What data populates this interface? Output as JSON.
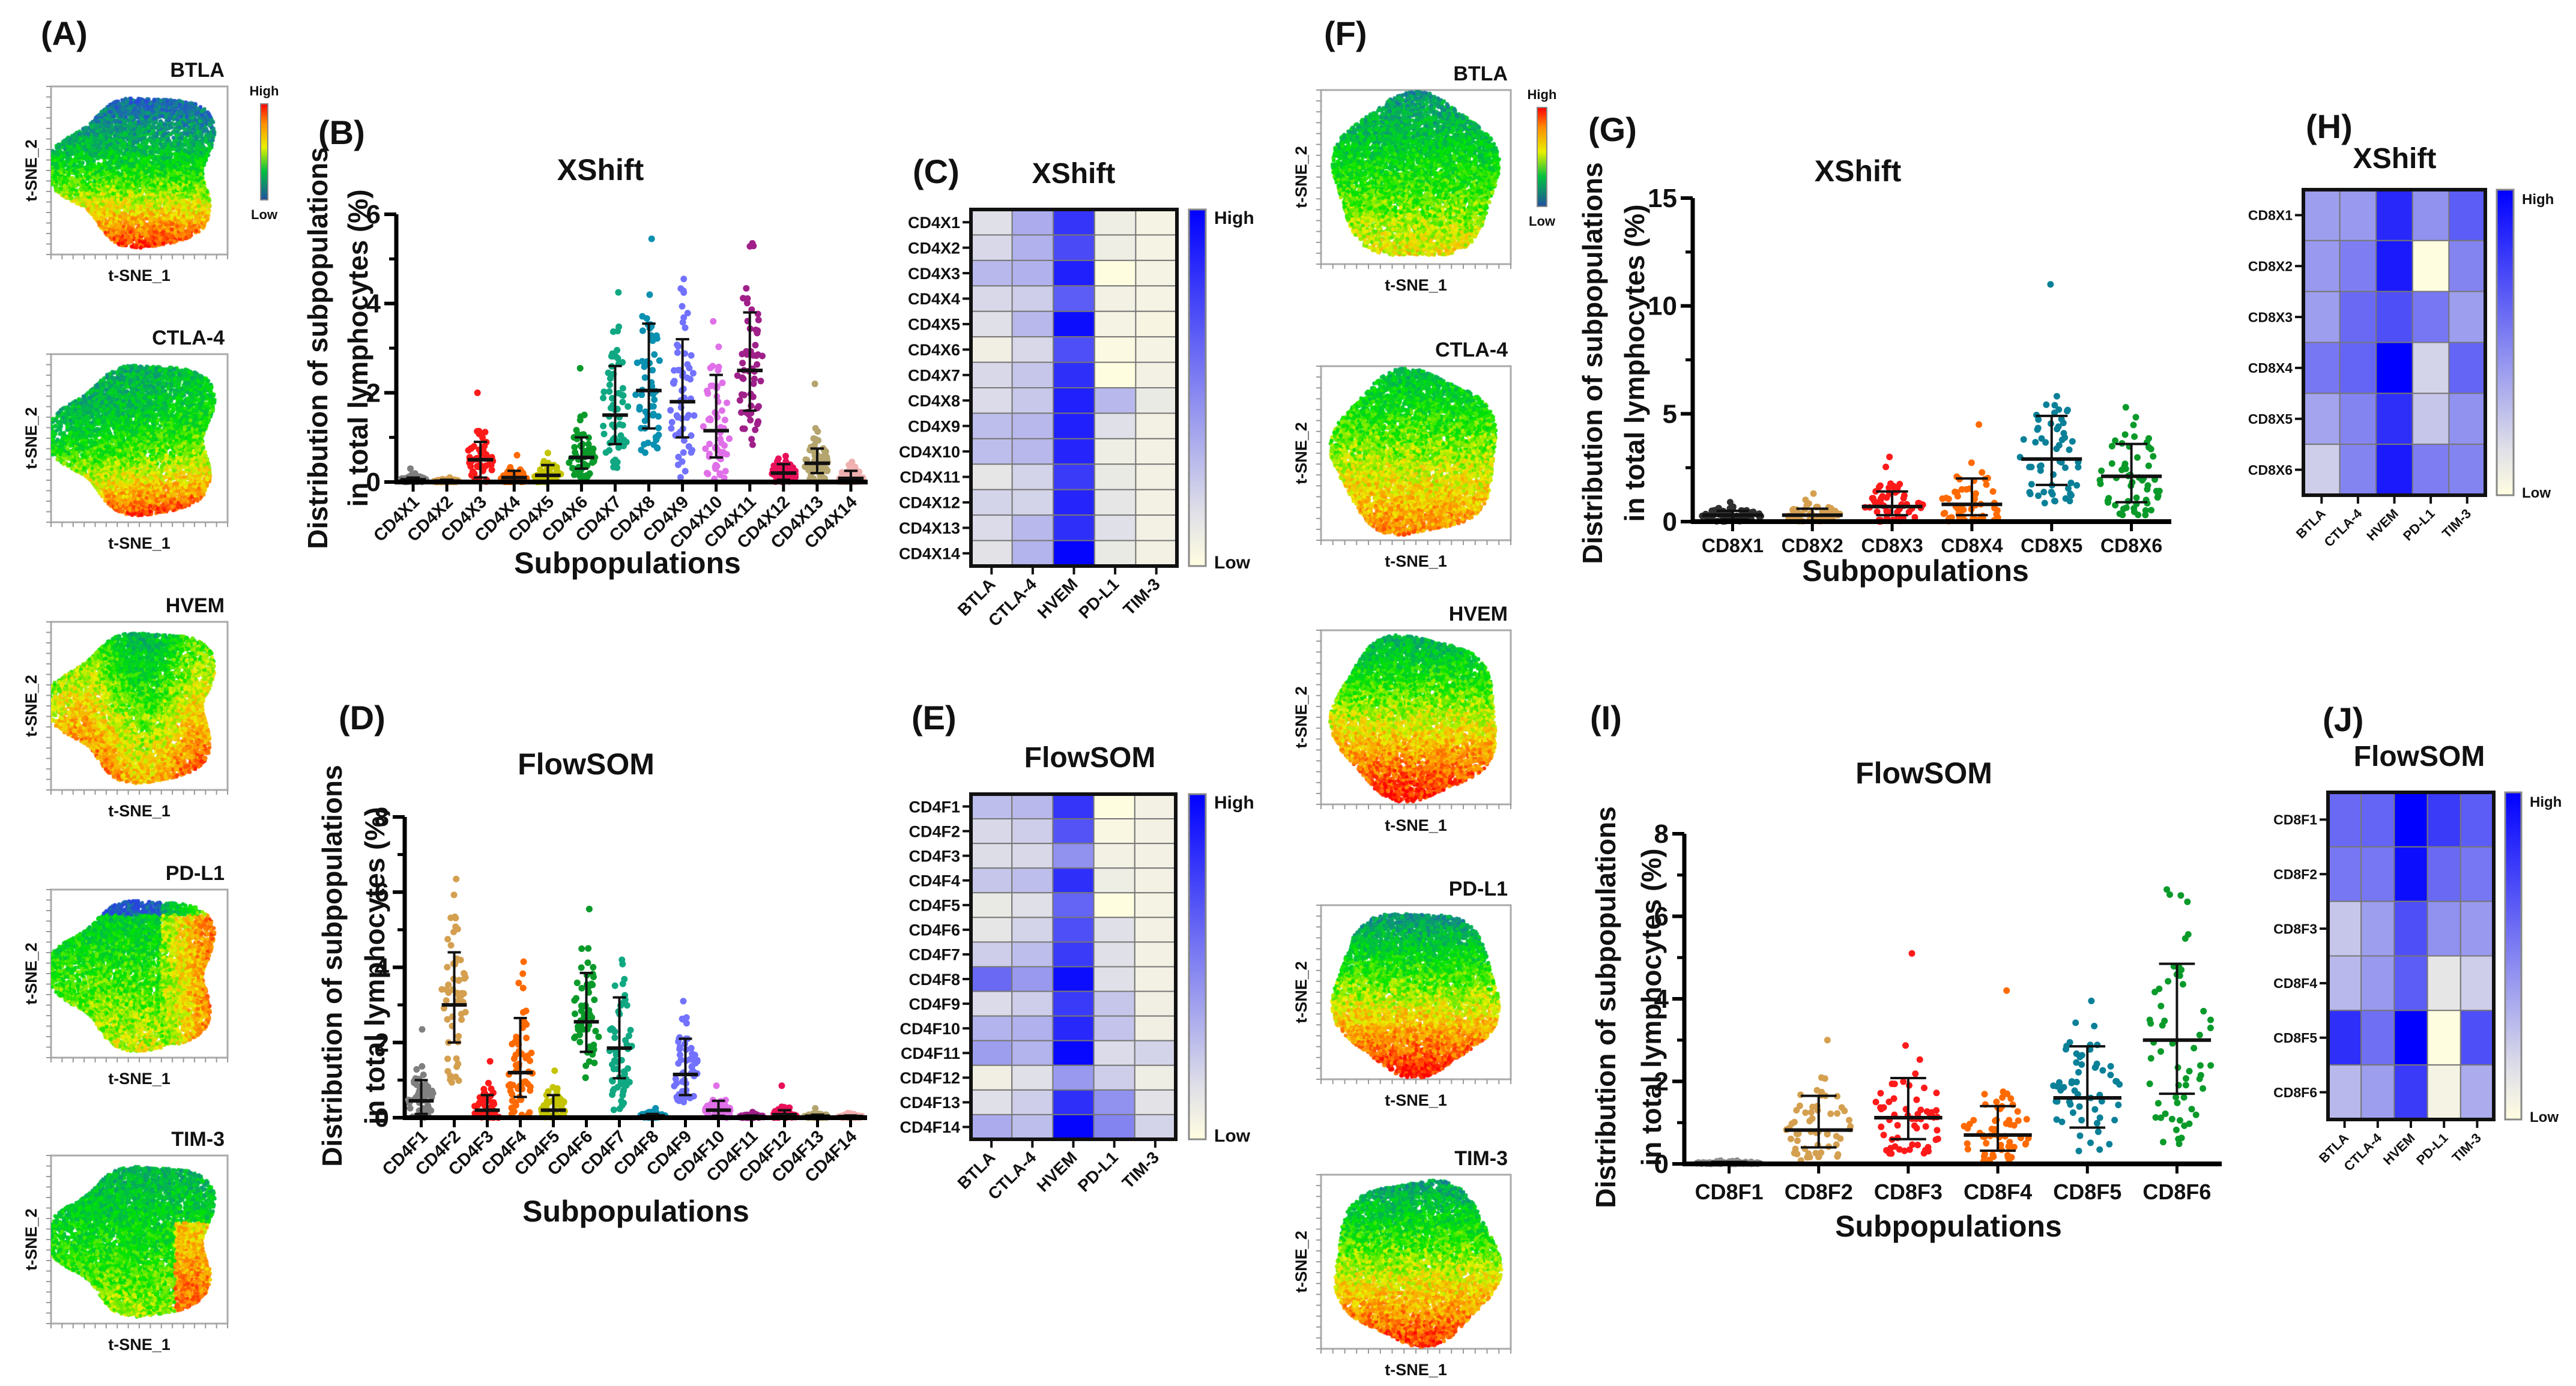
{
  "panel_labels": {
    "A": "(A)",
    "B": "(B)",
    "C": "(C)",
    "D": "(D)",
    "E": "(E)",
    "F": "(F)",
    "G": "(G)",
    "H": "(H)",
    "I": "(I)",
    "J": "(J)"
  },
  "tsne": {
    "panels_A": [
      "BTLA",
      "CTLA-4",
      "HVEM",
      "PD-L1",
      "TIM-3"
    ],
    "panels_F": [
      "BTLA",
      "CTLA-4",
      "HVEM",
      "PD-L1",
      "TIM-3"
    ],
    "xlabel": "t-SNE_1",
    "ylabel": "t-SNE_2",
    "colorbar": {
      "high": "High",
      "low": "Low"
    }
  },
  "chart_data": [
    {
      "panel": "B",
      "type": "scatter",
      "title": "XShift",
      "ylabel_lines": [
        "Distribution of subpopulations",
        "in total lymphocytes (%)"
      ],
      "xlabel": "Subpopulations",
      "ylim": [
        0,
        6
      ],
      "yticks": [
        0,
        2,
        4,
        6
      ],
      "minor_tick_step": 1,
      "categories": [
        "CD4X1",
        "CD4X2",
        "CD4X3",
        "CD4X4",
        "CD4X5",
        "CD4X6",
        "CD4X7",
        "CD4X8",
        "CD4X9",
        "CD4X10",
        "CD4X11",
        "CD4X12",
        "CD4X13",
        "CD4X14"
      ],
      "center": [
        0.05,
        0.02,
        0.5,
        0.1,
        0.15,
        0.55,
        1.5,
        2.05,
        1.8,
        1.15,
        2.5,
        0.2,
        0.42,
        0.08
      ],
      "lower": [
        0,
        0,
        0.1,
        0,
        0,
        0.3,
        0.85,
        1.2,
        1.0,
        0.55,
        1.6,
        0.05,
        0.2,
        0
      ],
      "upper": [
        0.1,
        0.05,
        0.9,
        0.25,
        0.38,
        1.0,
        2.6,
        3.55,
        3.2,
        2.4,
        3.8,
        0.4,
        0.75,
        0.25
      ],
      "min": [
        0,
        0,
        0,
        0,
        0,
        0.1,
        0.15,
        0.65,
        0.05,
        0,
        0.75,
        0,
        0,
        0
      ],
      "max": [
        0.3,
        0.1,
        2.0,
        0.6,
        0.65,
        2.55,
        4.25,
        5.45,
        4.55,
        3.6,
        5.35,
        0.58,
        2.2,
        0.45
      ],
      "colors": [
        "#808080",
        "#d4a050",
        "#ff1a1a",
        "#ff6a00",
        "#c4c400",
        "#0a9a2a",
        "#10a882",
        "#0a90b0",
        "#7272ff",
        "#e070e8",
        "#a0208a",
        "#e8105a",
        "#b4a46e",
        "#f0b0b0"
      ]
    },
    {
      "panel": "D",
      "type": "scatter",
      "title": "FlowSOM",
      "ylabel_lines": [
        "Distribution of subpopulations",
        "in total lymphocytes (%)"
      ],
      "xlabel": "Subpopulations",
      "ylim": [
        0,
        8
      ],
      "yticks": [
        0,
        2,
        4,
        6,
        8
      ],
      "minor_tick_step": 1,
      "categories": [
        "CD4F1",
        "CD4F2",
        "CD4F3",
        "CD4F4",
        "CD4F5",
        "CD4F6",
        "CD4F7",
        "CD4F8",
        "CD4F9",
        "CD4F10",
        "CD4F11",
        "CD4F12",
        "CD4F13",
        "CD4F14"
      ],
      "center": [
        0.45,
        3.0,
        0.2,
        1.2,
        0.2,
        2.55,
        1.85,
        0.05,
        1.15,
        0.2,
        0.03,
        0.08,
        0.04,
        0.03
      ],
      "lower": [
        0.1,
        2.0,
        0,
        0.55,
        0,
        1.75,
        1.05,
        0,
        0.6,
        0.05,
        0,
        0,
        0,
        0
      ],
      "upper": [
        1.0,
        4.4,
        0.6,
        2.65,
        0.6,
        3.85,
        3.2,
        0.1,
        2.1,
        0.45,
        0.06,
        0.2,
        0.08,
        0.06
      ],
      "min": [
        0,
        0.75,
        0,
        0,
        0,
        0.95,
        0.05,
        0,
        0.4,
        0,
        0,
        0,
        0,
        0
      ],
      "max": [
        2.35,
        6.35,
        1.5,
        4.15,
        1.25,
        5.55,
        4.2,
        0.25,
        3.1,
        0.85,
        0.15,
        0.85,
        0.25,
        0.12
      ],
      "colors": [
        "#808080",
        "#d4a050",
        "#ff1a1a",
        "#ff6a00",
        "#c4c400",
        "#0a9a2a",
        "#10a882",
        "#0a90b0",
        "#7272ff",
        "#e070e8",
        "#a0208a",
        "#e8105a",
        "#b4a46e",
        "#f0b0b0"
      ]
    },
    {
      "panel": "G",
      "type": "scatter",
      "title": "XShift",
      "ylabel_lines": [
        "Distribution of subpopulations",
        "in total lymphocytes (%)"
      ],
      "xlabel": "Subpopulations",
      "ylim": [
        0,
        15
      ],
      "yticks": [
        0,
        5,
        10,
        15
      ],
      "minor_tick_step": 2.5,
      "categories": [
        "CD8X1",
        "CD8X2",
        "CD8X3",
        "CD8X4",
        "CD8X5",
        "CD8X6"
      ],
      "center": [
        0.3,
        0.3,
        0.7,
        0.8,
        2.9,
        2.1
      ],
      "lower": [
        0.1,
        0.05,
        0.3,
        0.3,
        1.7,
        0.9
      ],
      "upper": [
        0.5,
        0.6,
        1.4,
        2.0,
        4.9,
        3.6
      ],
      "min": [
        0,
        0,
        0,
        0,
        0.8,
        0.3
      ],
      "max": [
        0.9,
        1.3,
        3.0,
        4.5,
        11.0,
        5.3
      ],
      "colors": [
        "#303030",
        "#d4a050",
        "#ff1a1a",
        "#ff6a00",
        "#0a8098",
        "#0a9a2a"
      ]
    },
    {
      "panel": "I",
      "type": "scatter",
      "title": "FlowSOM",
      "ylabel_lines": [
        "Distribution of subpopulations",
        "in total lymphocytes (%)"
      ],
      "xlabel": "Subpopulations",
      "ylim": [
        0,
        8
      ],
      "yticks": [
        0,
        2,
        4,
        6,
        8
      ],
      "minor_tick_step": 1,
      "categories": [
        "CD8F1",
        "CD8F2",
        "CD8F3",
        "CD8F4",
        "CD8F5",
        "CD8F6"
      ],
      "center": [
        0.02,
        0.82,
        1.12,
        0.7,
        1.6,
        3.0
      ],
      "lower": [
        0,
        0.4,
        0.6,
        0.32,
        0.88,
        1.7
      ],
      "upper": [
        0.05,
        1.65,
        2.08,
        1.4,
        2.85,
        4.85
      ],
      "min": [
        0,
        0.05,
        0.25,
        0.05,
        0.22,
        0.45
      ],
      "max": [
        0.08,
        3.0,
        5.1,
        4.2,
        3.95,
        6.65
      ],
      "colors": [
        "#909090",
        "#d4a050",
        "#ff1a1a",
        "#ff6a00",
        "#0a8098",
        "#0a9a2a"
      ]
    },
    {
      "panel": "C",
      "type": "heatmap",
      "title": "XShift",
      "rows": [
        "CD4X1",
        "CD4X2",
        "CD4X3",
        "CD4X4",
        "CD4X5",
        "CD4X6",
        "CD4X7",
        "CD4X8",
        "CD4X9",
        "CD4X10",
        "CD4X11",
        "CD4X12",
        "CD4X13",
        "CD4X14"
      ],
      "columns": [
        "BTLA",
        "CTLA-4",
        "HVEM",
        "PD-L1",
        "TIM-3"
      ],
      "values": [
        [
          0.15,
          0.35,
          0.8,
          0.08,
          0.05
        ],
        [
          0.18,
          0.33,
          0.72,
          0.08,
          0.05
        ],
        [
          0.3,
          0.33,
          0.88,
          0,
          0.05
        ],
        [
          0.18,
          0.22,
          0.65,
          0.06,
          0.05
        ],
        [
          0.15,
          0.3,
          0.95,
          0.05,
          0.04
        ],
        [
          0.07,
          0.18,
          0.7,
          0.02,
          0.05
        ],
        [
          0.18,
          0.25,
          0.82,
          0,
          0.06
        ],
        [
          0.17,
          0.24,
          0.88,
          0.3,
          0.1
        ],
        [
          0.28,
          0.3,
          0.88,
          0.15,
          0.06
        ],
        [
          0.28,
          0.3,
          0.86,
          0.08,
          0.06
        ],
        [
          0.12,
          0.2,
          0.78,
          0.1,
          0.06
        ],
        [
          0.2,
          0.2,
          0.86,
          0.12,
          0.06
        ],
        [
          0.17,
          0.3,
          0.82,
          0.15,
          0.06
        ],
        [
          0.14,
          0.32,
          0.98,
          0.1,
          0.06
        ]
      ],
      "colorbar": {
        "high": "High",
        "low": "Low"
      },
      "color_low": "#fffde0",
      "color_high": "#0000ff"
    },
    {
      "panel": "E",
      "type": "heatmap",
      "title": "FlowSOM",
      "rows": [
        "CD4F1",
        "CD4F2",
        "CD4F3",
        "CD4F4",
        "CD4F5",
        "CD4F6",
        "CD4F7",
        "CD4F8",
        "CD4F9",
        "CD4F10",
        "CD4F11",
        "CD4F12",
        "CD4F13",
        "CD4F14"
      ],
      "columns": [
        "BTLA",
        "CTLA-4",
        "HVEM",
        "PD-L1",
        "TIM-3"
      ],
      "values": [
        [
          0.28,
          0.3,
          0.8,
          0,
          0.06
        ],
        [
          0.18,
          0.22,
          0.68,
          0.03,
          0.06
        ],
        [
          0.16,
          0.18,
          0.45,
          0.06,
          0.06
        ],
        [
          0.25,
          0.28,
          0.82,
          0.08,
          0.06
        ],
        [
          0.1,
          0.15,
          0.62,
          0,
          0.05
        ],
        [
          0.12,
          0.2,
          0.7,
          0.15,
          0.06
        ],
        [
          0.22,
          0.28,
          0.78,
          0.15,
          0.06
        ],
        [
          0.6,
          0.42,
          0.95,
          0.15,
          0.06
        ],
        [
          0.17,
          0.22,
          0.78,
          0.25,
          0.07
        ],
        [
          0.32,
          0.33,
          0.85,
          0.26,
          0.07
        ],
        [
          0.4,
          0.32,
          0.97,
          0.17,
          0.2
        ],
        [
          0.07,
          0.15,
          0.42,
          0.22,
          0.08
        ],
        [
          0.15,
          0.22,
          0.82,
          0.45,
          0.14
        ],
        [
          0.35,
          0.28,
          0.98,
          0.5,
          0.2
        ]
      ],
      "colorbar": {
        "high": "High",
        "low": "Low"
      },
      "color_low": "#fffde0",
      "color_high": "#0000ff"
    },
    {
      "panel": "H",
      "type": "heatmap",
      "title": "XShift",
      "rows": [
        "CD8X1",
        "CD8X2",
        "CD8X3",
        "CD8X4",
        "CD8X5",
        "CD8X6"
      ],
      "columns": [
        "BTLA",
        "CTLA-4",
        "HVEM",
        "PD-L1",
        "TIM-3"
      ],
      "values": [
        [
          0.4,
          0.42,
          0.85,
          0.45,
          0.65
        ],
        [
          0.42,
          0.52,
          0.9,
          0,
          0.5
        ],
        [
          0.4,
          0.6,
          0.7,
          0.55,
          0.4
        ],
        [
          0.55,
          0.62,
          1,
          0.2,
          0.62
        ],
        [
          0.38,
          0.5,
          0.82,
          0.25,
          0.45
        ],
        [
          0.22,
          0.5,
          0.9,
          0.52,
          0.5
        ]
      ],
      "colorbar": {
        "high": "High",
        "low": "Low"
      },
      "color_low": "#fffde0",
      "color_high": "#0000ff"
    },
    {
      "panel": "J",
      "type": "heatmap",
      "title": "FlowSOM",
      "rows": [
        "CD8F1",
        "CD8F2",
        "CD8F3",
        "CD8F4",
        "CD8F5",
        "CD8F6"
      ],
      "columns": [
        "BTLA",
        "CTLA-4",
        "HVEM",
        "PD-L1",
        "TIM-3"
      ],
      "values": [
        [
          0.6,
          0.62,
          1,
          0.78,
          0.65
        ],
        [
          0.55,
          0.55,
          0.95,
          0.6,
          0.55
        ],
        [
          0.25,
          0.4,
          0.7,
          0.45,
          0.42
        ],
        [
          0.3,
          0.42,
          0.65,
          0.12,
          0.22
        ],
        [
          0.82,
          0.58,
          1,
          0,
          0.7
        ],
        [
          0.3,
          0.4,
          0.78,
          0.05,
          0.35
        ]
      ],
      "colorbar": {
        "high": "High",
        "low": "Low"
      },
      "color_low": "#fffde0",
      "color_high": "#0000ff"
    }
  ]
}
